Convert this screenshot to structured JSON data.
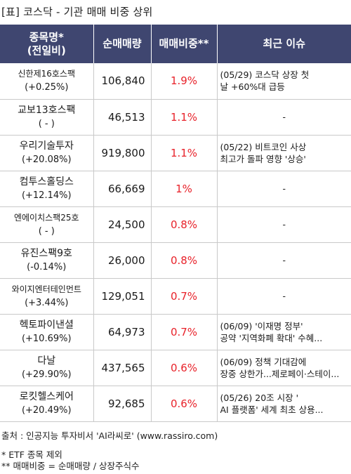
{
  "title": "[표] 코스닥 - 기관 매매 비중 상위",
  "headers": {
    "name_line1": "종목명*",
    "name_line2": "(전일비)",
    "volume": "순매매량",
    "ratio": "매매비중**",
    "issue": "최근 이슈"
  },
  "rows": [
    {
      "name": "신한제16호스팩",
      "change": "(+0.25%)",
      "volume": "106,840",
      "ratio": "1.9%",
      "issue1": "(05/29) 코스닥 상장 첫",
      "issue2": "날 +60%대 급등"
    },
    {
      "name": "교보13호스팩",
      "change": "( - )",
      "volume": "46,513",
      "ratio": "1.1%",
      "issue1": "-",
      "issue2": ""
    },
    {
      "name": "우리기술투자",
      "change": "(+20.08%)",
      "volume": "919,800",
      "ratio": "1.1%",
      "issue1": "(05/22) 비트코인 사상",
      "issue2": "최고가 돌파 영향 '상승'"
    },
    {
      "name": "컴투스홀딩스",
      "change": "(+12.14%)",
      "volume": "66,669",
      "ratio": "1%",
      "issue1": "-",
      "issue2": ""
    },
    {
      "name": "엔에이치스팩25호",
      "change": "( - )",
      "volume": "24,500",
      "ratio": "0.8%",
      "issue1": "-",
      "issue2": ""
    },
    {
      "name": "유진스팩9호",
      "change": "(-0.14%)",
      "volume": "26,000",
      "ratio": "0.8%",
      "issue1": "-",
      "issue2": ""
    },
    {
      "name": "와이지엔터테인먼트",
      "change": "(+3.44%)",
      "volume": "129,051",
      "ratio": "0.7%",
      "issue1": "-",
      "issue2": ""
    },
    {
      "name": "헥토파이낸셜",
      "change": "(+10.69%)",
      "volume": "64,973",
      "ratio": "0.7%",
      "issue1": "(06/09) '이재명 정부'",
      "issue2": "공약 '지역화폐 확대' 수혜..."
    },
    {
      "name": "다날",
      "change": "(+29.90%)",
      "volume": "437,565",
      "ratio": "0.6%",
      "issue1": "(06/09) 정책 기대감에",
      "issue2": "장중 상한가...제로페이·스테이..."
    },
    {
      "name": "로킷헬스케어",
      "change": "(+20.49%)",
      "volume": "92,685",
      "ratio": "0.6%",
      "issue1": "(05/26) 20조 시장 '",
      "issue2": "AI 플랫폼' 세계 최초 상용..."
    }
  ],
  "footer": {
    "source": "출처 : 인공지능 투자비서 'AI라씨로' (www.rassiro.com)",
    "note1": "* ETF 종목 제외",
    "note2": "** 매매비중 = 순매매량 / 상장주식수"
  }
}
